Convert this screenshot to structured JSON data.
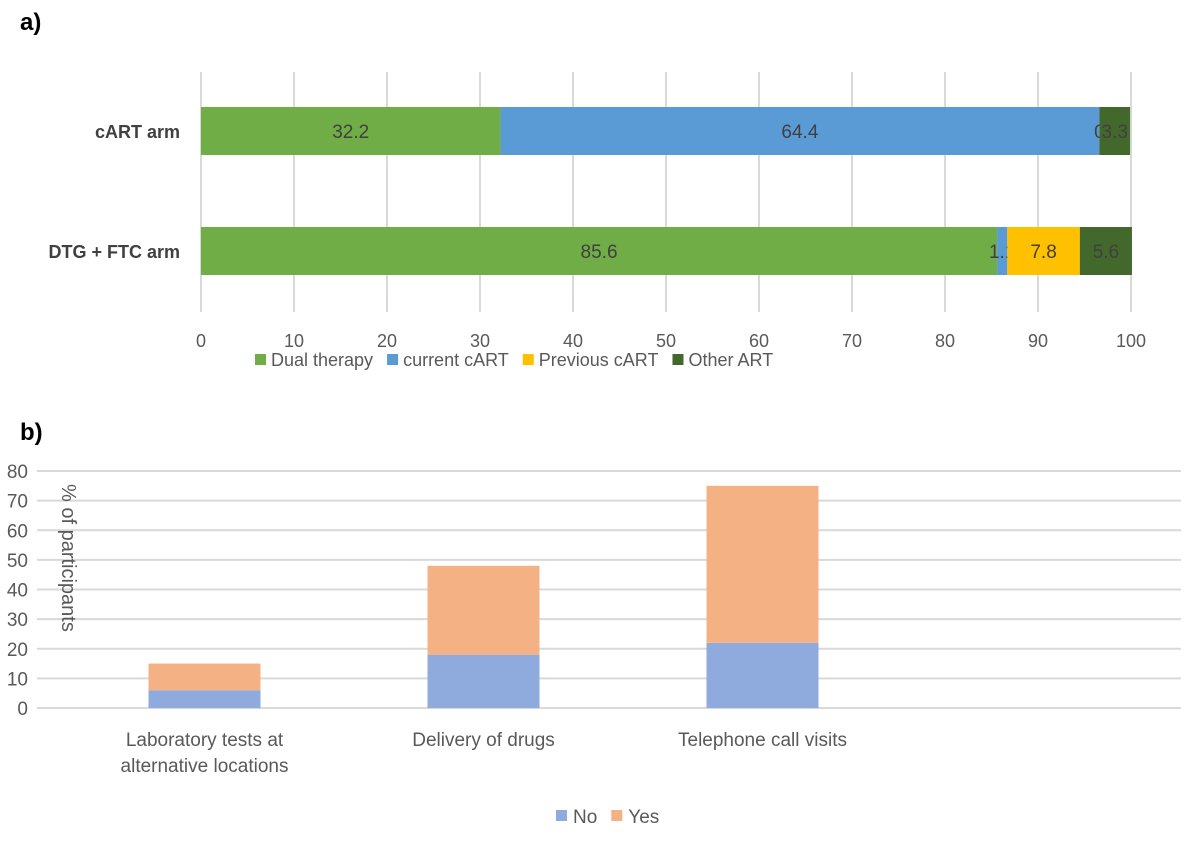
{
  "chart_data": [
    {
      "panel": "a)",
      "type": "bar",
      "orientation": "horizontal",
      "stacked": true,
      "categories": [
        "cART arm",
        "DTG + FTC arm"
      ],
      "series": [
        {
          "name": "Dual therapy",
          "color": "#70AD47",
          "values": [
            32.2,
            85.6
          ],
          "labels": [
            "32.2",
            "85.6"
          ]
        },
        {
          "name": "current cART",
          "color": "#5B9BD5",
          "values": [
            64.4,
            1.1
          ],
          "labels": [
            "64.4",
            "1.1"
          ]
        },
        {
          "name": "Previous cART",
          "color": "#FFC000",
          "values": [
            0,
            7.8
          ],
          "labels": [
            "0",
            "7.8"
          ]
        },
        {
          "name": "Other ART",
          "color": "#43682B",
          "values": [
            3.3,
            5.6
          ],
          "labels": [
            "3.3",
            "5.6"
          ]
        }
      ],
      "xlim": [
        0,
        100
      ],
      "xticks": [
        "0",
        "10",
        "20",
        "30",
        "40",
        "50",
        "60",
        "70",
        "80",
        "90",
        "100"
      ],
      "grid": true,
      "legend": "bottom"
    },
    {
      "panel": "b)",
      "type": "bar",
      "stacked": true,
      "categories": [
        "Laboratory tests at alternative locations",
        "Delivery of drugs",
        "Telephone call visits",
        ""
      ],
      "category_lines": [
        [
          "Laboratory tests at",
          "alternative locations"
        ],
        [
          "Delivery of drugs"
        ],
        [
          "Telephone call visits"
        ],
        []
      ],
      "series": [
        {
          "name": "No",
          "color": "#8FAADC",
          "values": [
            6,
            18,
            22,
            0
          ]
        },
        {
          "name": "Yes",
          "color": "#F4B183",
          "values": [
            9,
            30,
            53,
            0
          ]
        }
      ],
      "ylabel": "% of participants",
      "ylim": [
        0,
        80
      ],
      "yticks": [
        "0",
        "10",
        "20",
        "30",
        "40",
        "50",
        "60",
        "70",
        "80"
      ],
      "grid": true,
      "legend": "bottom"
    }
  ]
}
